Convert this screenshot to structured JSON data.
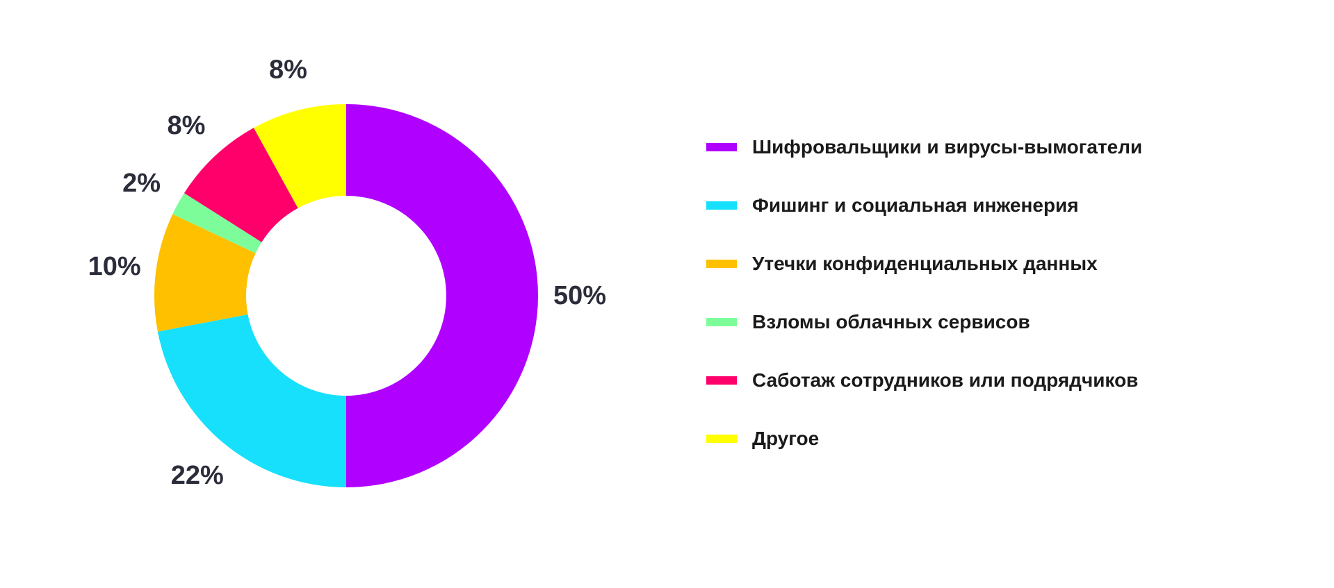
{
  "chart_data": {
    "type": "pie",
    "variant": "donut",
    "title": "",
    "categories": [
      "Шифровальщики и вирусы-вымогатели",
      "Фишинг и социальная инженерия",
      "Утечки конфиденциальных данных",
      "Взломы облачных сервисов",
      "Саботаж сотрудников или подрядчиков",
      "Другое"
    ],
    "values": [
      50,
      22,
      10,
      2,
      8,
      8
    ],
    "value_labels": [
      "50%",
      "22%",
      "10%",
      "2%",
      "8%",
      "8%"
    ],
    "colors": [
      "#b000ff",
      "#16e0fb",
      "#ffc000",
      "#7dfd9a",
      "#ff006b",
      "#ffff00"
    ],
    "legend_position": "right",
    "start_angle": "top",
    "direction": "clockwise"
  }
}
